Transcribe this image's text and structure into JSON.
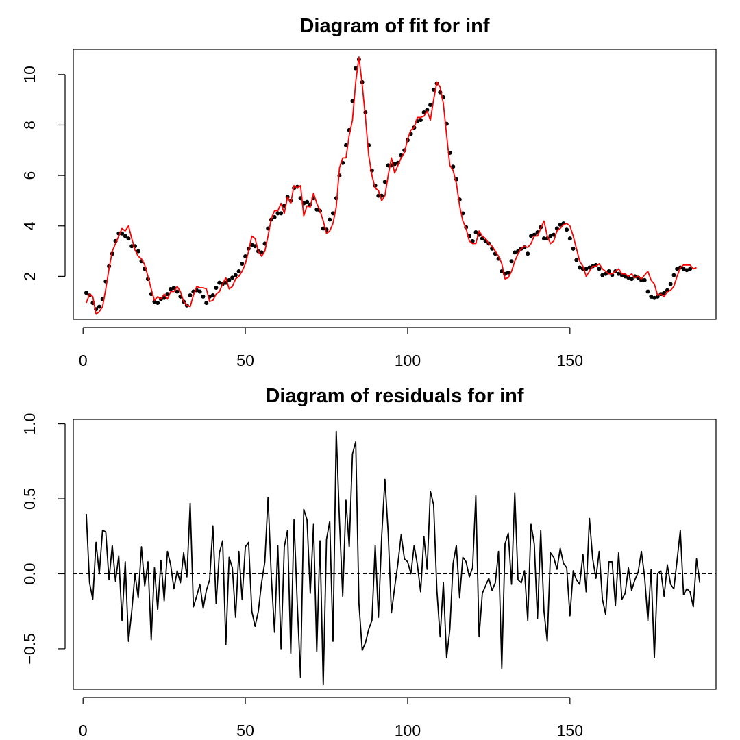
{
  "chart_data": [
    {
      "type": "line",
      "title": "Diagram of fit for inf",
      "xlabel": "",
      "ylabel": "",
      "xlim": [
        -3,
        195
      ],
      "ylim": [
        0.3,
        11.0
      ],
      "xticks": [
        0,
        50,
        100,
        150
      ],
      "yticks": [
        2,
        4,
        6,
        8,
        10
      ],
      "x_start": 1,
      "series": [
        {
          "kind": "points",
          "color": "#000000",
          "values": [
            1.35,
            1.25,
            0.95,
            0.7,
            0.8,
            1.1,
            1.8,
            2.4,
            2.9,
            3.4,
            3.7,
            3.7,
            3.6,
            3.5,
            3.2,
            3.2,
            3.0,
            2.6,
            2.3,
            1.9,
            1.3,
            1.0,
            0.95,
            1.1,
            1.15,
            1.3,
            1.5,
            1.55,
            1.4,
            1.2,
            1.0,
            0.85,
            1.25,
            1.4,
            1.45,
            1.4,
            1.2,
            0.95,
            1.2,
            1.25,
            1.55,
            1.75,
            1.7,
            1.75,
            1.85,
            1.95,
            2.05,
            2.2,
            2.5,
            2.8,
            3.1,
            3.25,
            3.2,
            3.0,
            2.95,
            3.3,
            3.9,
            4.25,
            4.35,
            4.5,
            4.5,
            4.8,
            5.15,
            5.0,
            5.5,
            5.55,
            5.1,
            4.9,
            4.95,
            4.85,
            5.1,
            4.65,
            4.6,
            3.9,
            3.85,
            4.25,
            4.5,
            5.1,
            6.0,
            6.5,
            7.2,
            7.8,
            8.95,
            10.25,
            10.6,
            9.7,
            8.5,
            7.2,
            6.2,
            5.6,
            5.2,
            5.2,
            5.75,
            6.4,
            6.4,
            6.45,
            6.5,
            6.8,
            7.0,
            7.4,
            7.65,
            7.9,
            8.15,
            8.2,
            8.5,
            8.6,
            8.8,
            9.4,
            9.65,
            9.3,
            9.1,
            8.05,
            6.9,
            6.35,
            5.85,
            5.05,
            4.5,
            3.95,
            3.6,
            3.4,
            3.75,
            3.65,
            3.5,
            3.4,
            3.3,
            3.1,
            2.9,
            2.7,
            2.2,
            2.1,
            2.15,
            2.6,
            2.95,
            3.0,
            3.1,
            3.15,
            2.9,
            3.6,
            3.65,
            3.75,
            3.95,
            3.5,
            3.5,
            3.6,
            3.65,
            3.9,
            4.05,
            4.1,
            3.85,
            3.5,
            3.1,
            2.65,
            2.35,
            2.3,
            2.3,
            2.35,
            2.4,
            2.45,
            2.3,
            2.05,
            2.1,
            2.2,
            2.05,
            2.2,
            2.1,
            2.05,
            2.0,
            1.95,
            1.9,
            2.0,
            1.95,
            1.85,
            1.85,
            1.4,
            1.2,
            1.15,
            1.2,
            1.3,
            1.35,
            1.45,
            1.7,
            2.05,
            2.3,
            2.35,
            2.3,
            2.25,
            2.3
          ]
        },
        {
          "kind": "line",
          "color": "#ff0000",
          "values": [
            0.95,
            1.3,
            1.2,
            0.5,
            0.6,
            0.8,
            1.5,
            2.3,
            3.0,
            3.3,
            3.6,
            3.9,
            3.8,
            4.0,
            3.5,
            3.05,
            2.8,
            2.7,
            2.45,
            2.0,
            1.5,
            1.05,
            1.2,
            1.1,
            1.3,
            1.1,
            1.4,
            1.4,
            1.6,
            1.4,
            1.0,
            0.85,
            0.8,
            1.25,
            1.6,
            1.55,
            1.55,
            1.5,
            1.0,
            1.05,
            1.3,
            1.4,
            1.7,
            1.95,
            1.5,
            1.6,
            1.9,
            2.0,
            2.2,
            2.5,
            3.0,
            3.6,
            3.5,
            3.0,
            2.8,
            3.0,
            3.6,
            4.3,
            4.6,
            4.6,
            4.9,
            4.5,
            5.15,
            4.9,
            5.6,
            5.5,
            5.6,
            4.4,
            4.8,
            4.75,
            5.3,
            4.9,
            4.6,
            4.2,
            3.7,
            3.8,
            4.1,
            4.75,
            6.3,
            6.7,
            6.7,
            7.6,
            8.2,
            9.7,
            10.7,
            9.6,
            8.3,
            6.8,
            6.0,
            5.5,
            5.4,
            5.0,
            5.2,
            6.0,
            6.7,
            6.1,
            6.4,
            6.7,
            6.9,
            7.45,
            7.8,
            7.9,
            8.3,
            8.3,
            8.35,
            8.55,
            8.2,
            9.0,
            9.7,
            9.5,
            8.85,
            7.6,
            6.4,
            6.2,
            5.7,
            4.8,
            4.2,
            3.9,
            3.4,
            3.3,
            3.3,
            3.8,
            3.6,
            3.5,
            3.3,
            3.2,
            3.0,
            2.8,
            2.5,
            1.9,
            1.95,
            2.2,
            2.6,
            2.9,
            3.1,
            3.2,
            3.15,
            3.3,
            3.6,
            3.6,
            3.9,
            4.2,
            3.6,
            3.3,
            3.4,
            3.8,
            3.9,
            4.05,
            4.1,
            4.0,
            3.6,
            3.1,
            2.6,
            2.4,
            2.0,
            2.2,
            2.4,
            2.4,
            2.5,
            2.3,
            2.2,
            2.1,
            2.1,
            2.2,
            2.3,
            2.1,
            2.1,
            2.0,
            2.1,
            1.95,
            2.0,
            1.9,
            2.05,
            2.2,
            1.85,
            1.7,
            1.25,
            1.3,
            1.2,
            1.4,
            1.45,
            1.6,
            2.0,
            2.35,
            2.45,
            2.45,
            2.45,
            2.3,
            2.35
          ]
        }
      ]
    },
    {
      "type": "line",
      "title": "Diagram of residuals for inf",
      "xlabel": "",
      "ylabel": "",
      "xlim": [
        -3,
        195
      ],
      "ylim": [
        -0.77,
        1.03
      ],
      "xticks": [
        0,
        50,
        100,
        150
      ],
      "yticks": [
        -0.5,
        0.0,
        0.5,
        1.0
      ],
      "ytick_labels": [
        "−0.5",
        "0.0",
        "0.5",
        "1.0"
      ],
      "x_start": 1,
      "reference_line": {
        "y": 0,
        "style": "dashed"
      },
      "series": [
        {
          "kind": "line",
          "color": "#000000",
          "values": [
            0.4,
            -0.06,
            -0.17,
            0.21,
            0.0,
            0.29,
            0.28,
            -0.04,
            0.19,
            -0.05,
            0.12,
            -0.31,
            0.08,
            -0.45,
            -0.25,
            0.0,
            -0.16,
            0.18,
            -0.08,
            0.08,
            -0.44,
            0.04,
            -0.24,
            0.09,
            -0.18,
            0.15,
            0.06,
            -0.1,
            0.02,
            -0.06,
            0.14,
            -0.02,
            0.47,
            -0.22,
            -0.15,
            -0.07,
            -0.23,
            -0.11,
            -0.04,
            0.32,
            -0.2,
            0.14,
            0.22,
            -0.47,
            0.11,
            0.04,
            -0.29,
            0.15,
            -0.17,
            0.18,
            0.21,
            -0.25,
            -0.35,
            -0.25,
            -0.06,
            0.08,
            0.51,
            -0.02,
            -0.39,
            0.19,
            -0.5,
            0.18,
            0.29,
            -0.53,
            0.36,
            -0.2,
            -0.69,
            0.43,
            0.36,
            -0.13,
            0.33,
            -0.52,
            0.22,
            -0.74,
            0.23,
            0.35,
            -0.45,
            0.95,
            0.35,
            -0.15,
            0.49,
            0.18,
            0.8,
            0.88,
            -0.2,
            -0.51,
            -0.46,
            -0.37,
            -0.31,
            0.19,
            -0.29,
            0.25,
            0.63,
            0.27,
            -0.26,
            -0.09,
            0.07,
            0.26,
            0.1,
            0.08,
            0.0,
            0.19,
            0.06,
            -0.12,
            0.25,
            0.03,
            0.55,
            0.46,
            -0.11,
            -0.42,
            -0.06,
            -0.56,
            -0.37,
            0.07,
            0.19,
            -0.16,
            0.11,
            0.08,
            -0.02,
            0.04,
            0.52,
            -0.42,
            -0.13,
            -0.08,
            -0.03,
            -0.11,
            -0.06,
            0.15,
            -0.63,
            0.2,
            0.27,
            -0.07,
            0.54,
            -0.04,
            -0.06,
            0.02,
            -0.31,
            0.33,
            0.2,
            -0.3,
            0.29,
            -0.25,
            -0.45,
            0.14,
            0.11,
            0.03,
            0.17,
            0.07,
            0.04,
            -0.28,
            0.02,
            -0.04,
            -0.07,
            0.13,
            -0.12,
            0.37,
            0.1,
            -0.03,
            0.15,
            -0.17,
            -0.27,
            0.08,
            0.08,
            -0.21,
            0.14,
            -0.17,
            -0.13,
            0.04,
            -0.11,
            -0.04,
            0.01,
            0.15,
            -0.02,
            -0.31,
            0.03,
            -0.56,
            0.0,
            0.02,
            -0.15,
            0.06,
            -0.07,
            -0.1,
            0.09,
            0.29,
            -0.14,
            -0.1,
            -0.12,
            -0.22,
            0.1,
            -0.06
          ]
        }
      ]
    }
  ]
}
